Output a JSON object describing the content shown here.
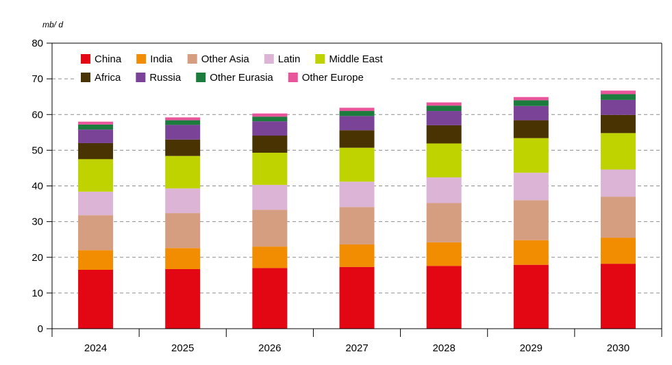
{
  "chart_data": {
    "type": "bar",
    "stacked": true,
    "unit_label": "mb/ d",
    "categories": [
      "2024",
      "2025",
      "2026",
      "2027",
      "2028",
      "2029",
      "2030"
    ],
    "ylim": [
      0,
      80
    ],
    "yticks": [
      0,
      10,
      20,
      30,
      40,
      50,
      60,
      70,
      80
    ],
    "grid": "horizontal dashed",
    "legend_position": "top-left",
    "series": [
      {
        "name": "China",
        "color": "#e30613",
        "values": [
          16.5,
          16.7,
          17.0,
          17.3,
          17.6,
          17.9,
          18.2
        ]
      },
      {
        "name": "India",
        "color": "#f28c00",
        "values": [
          5.5,
          5.9,
          6.0,
          6.3,
          6.6,
          6.9,
          7.3
        ]
      },
      {
        "name": "Other Asia",
        "color": "#d69e80",
        "values": [
          9.8,
          9.8,
          10.3,
          10.5,
          11.0,
          11.2,
          11.5
        ]
      },
      {
        "name": "Latin",
        "color": "#dcb4d6",
        "values": [
          6.6,
          6.9,
          7.0,
          7.1,
          7.2,
          7.7,
          7.6
        ]
      },
      {
        "name": "Middle East",
        "color": "#bfd300",
        "values": [
          9.1,
          9.1,
          9.0,
          9.5,
          9.5,
          9.7,
          10.2
        ]
      },
      {
        "name": "Africa",
        "color": "#4a3303",
        "values": [
          4.5,
          4.6,
          4.8,
          4.9,
          5.1,
          5.0,
          5.1
        ]
      },
      {
        "name": "Russia",
        "color": "#7b4398",
        "values": [
          3.8,
          4.1,
          4.0,
          4.0,
          4.0,
          4.0,
          4.2
        ]
      },
      {
        "name": "Other Eurasia",
        "color": "#1b7c3d",
        "values": [
          1.4,
          1.3,
          1.3,
          1.4,
          1.5,
          1.6,
          1.6
        ]
      },
      {
        "name": "Other Europe",
        "color": "#e8559b",
        "values": [
          0.8,
          0.8,
          0.9,
          0.9,
          0.9,
          0.9,
          1.0
        ]
      }
    ]
  }
}
